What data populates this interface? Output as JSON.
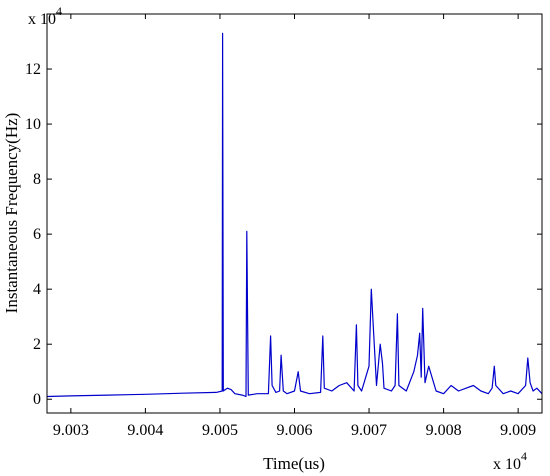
{
  "chart_data": {
    "type": "line",
    "title": "",
    "xlabel": "Time(us)",
    "ylabel": "Instantaneous Frequency(Hz)",
    "x_multiplier": {
      "base": "x 10",
      "exponent": "4"
    },
    "y_multiplier": {
      "base": "x 10",
      "exponent": "4"
    },
    "xlim": [
      9.00268,
      9.00932
    ],
    "ylim": [
      -0.5,
      14
    ],
    "x_ticks": [
      9.003,
      9.004,
      9.005,
      9.006,
      9.007,
      9.008,
      9.009
    ],
    "x_tick_labels": [
      "9.003",
      "9.004",
      "9.005",
      "9.006",
      "9.007",
      "9.008",
      "9.009"
    ],
    "y_ticks": [
      0,
      2,
      4,
      6,
      8,
      10,
      12
    ],
    "y_tick_labels": [
      "0",
      "2",
      "4",
      "6",
      "8",
      "10",
      "12"
    ],
    "grid": false,
    "line_color": "#0000cc",
    "series": [
      {
        "x": [
          9.00268,
          9.003,
          9.0035,
          9.004,
          9.0045,
          9.00495,
          9.00503,
          9.005035,
          9.005045,
          9.00507,
          9.0051,
          9.00515,
          9.0052,
          9.0053,
          9.00535,
          9.00536,
          9.00538,
          9.0055,
          9.00565,
          9.00568,
          9.0057,
          9.00575,
          9.0058,
          9.00582,
          9.00585,
          9.0059,
          9.006,
          9.00605,
          9.00608,
          9.0062,
          9.00635,
          9.00638,
          9.0064,
          9.0065,
          9.0066,
          9.0067,
          9.0068,
          9.00683,
          9.00685,
          9.0069,
          9.007,
          9.00703,
          9.00706,
          9.0071,
          9.00715,
          9.00718,
          9.0072,
          9.0073,
          9.00735,
          9.00738,
          9.0074,
          9.0075,
          9.0076,
          9.00765,
          9.00768,
          9.0077,
          9.00772,
          9.00775,
          9.0078,
          9.0079,
          9.008,
          9.0081,
          9.0082,
          9.0083,
          9.0084,
          9.0085,
          9.0086,
          9.00865,
          9.00868,
          9.0087,
          9.0088,
          9.0089,
          9.009,
          9.0091,
          9.00913,
          9.00916,
          9.0092,
          9.00925,
          9.00932
        ],
        "y": [
          0.1,
          0.12,
          0.15,
          0.18,
          0.22,
          0.25,
          0.3,
          13.3,
          0.3,
          0.35,
          0.4,
          0.35,
          0.2,
          0.15,
          0.1,
          6.1,
          0.15,
          0.2,
          0.2,
          2.3,
          0.5,
          0.25,
          0.3,
          1.6,
          0.3,
          0.2,
          0.3,
          1.0,
          0.3,
          0.2,
          0.25,
          2.3,
          0.4,
          0.3,
          0.5,
          0.6,
          0.3,
          2.7,
          0.5,
          0.3,
          1.2,
          4.0,
          2.5,
          0.5,
          2.0,
          1.3,
          0.4,
          0.3,
          0.5,
          3.1,
          0.5,
          0.3,
          1.0,
          1.6,
          2.4,
          0.8,
          3.3,
          0.6,
          1.2,
          0.3,
          0.2,
          0.5,
          0.3,
          0.4,
          0.5,
          0.3,
          0.2,
          0.4,
          1.2,
          0.5,
          0.2,
          0.3,
          0.2,
          0.5,
          1.5,
          0.6,
          0.3,
          0.4,
          0.2
        ]
      }
    ]
  }
}
